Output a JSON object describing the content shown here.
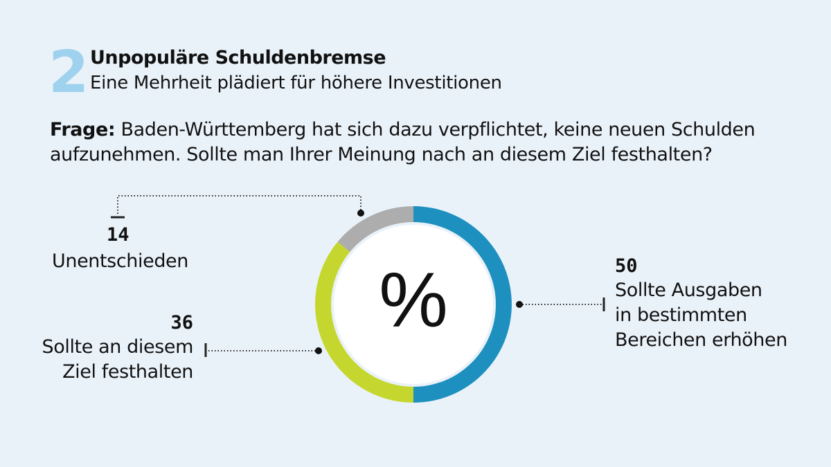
{
  "header": {
    "number": "2",
    "title": "Unpopuläre Schuldenbremse",
    "subtitle": "Eine Mehrheit plädiert für höhere Investitionen"
  },
  "question": {
    "label": "Frage:",
    "text": "Baden-Württemberg hat sich dazu verpflichtet, keine neuen Schulden aufzunehmen. Sollte man Ihrer Meinung nach an diesem Ziel festhalten?"
  },
  "chart_data": {
    "type": "pie",
    "center_label": "%",
    "slices": [
      {
        "label": "Sollte Ausgaben in bestimmten Bereichen erhöhen",
        "lines": [
          "Sollte Ausgaben",
          "in bestimmten",
          "Bereichen erhöhen"
        ],
        "value": 50,
        "color": "#1e90bf"
      },
      {
        "label": "Sollte an diesem Ziel festhalten",
        "lines": [
          "Sollte an diesem",
          "Ziel festhalten"
        ],
        "value": 36,
        "color": "#c5d72e"
      },
      {
        "label": "Unentschieden",
        "lines": [
          "Unentschieden"
        ],
        "value": 14,
        "color": "#adadad"
      }
    ]
  }
}
